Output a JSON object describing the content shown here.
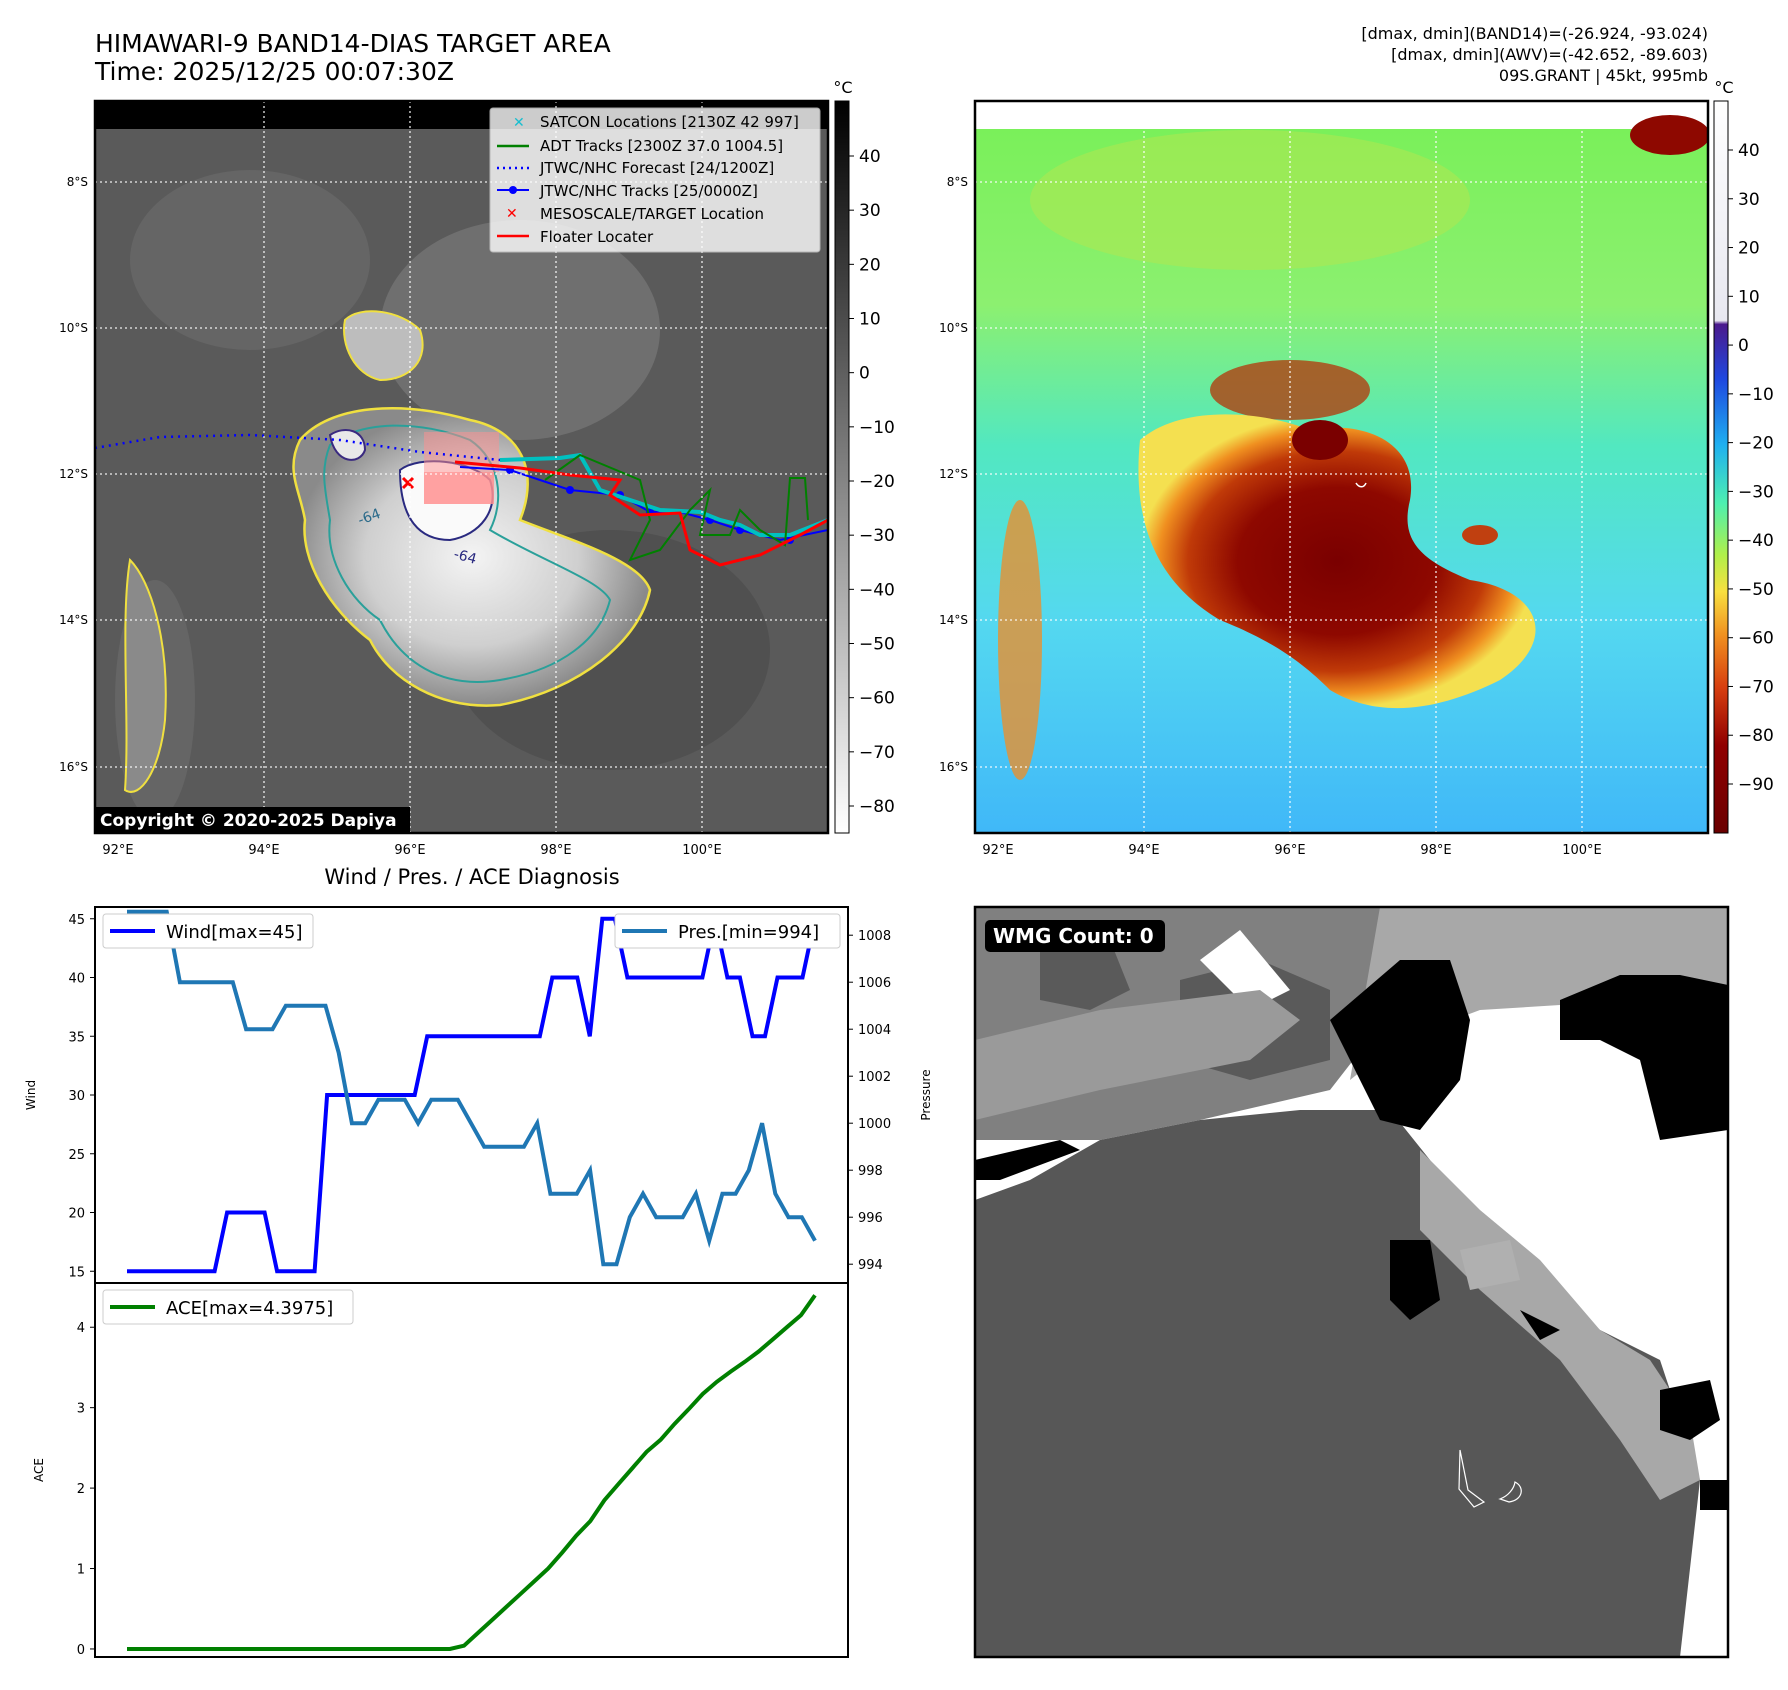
{
  "header": {
    "title_line1": "HIMAWARI-9 BAND14-DIAS TARGET AREA",
    "title_line2": "Time: 2025/12/25 00:07:30Z",
    "stats_line1": "[dmax, dmin](BAND14)=(-26.924, -93.024)",
    "stats_line2": "[dmax, dmin](AWV)=(-42.652, -89.603)",
    "stats_line3": "09S.GRANT | 45kt, 995mb"
  },
  "map": {
    "lat_labels": [
      "8°S",
      "10°S",
      "12°S",
      "14°S",
      "16°S"
    ],
    "lon_labels": [
      "92°E",
      "94°E",
      "96°E",
      "98°E",
      "100°E"
    ],
    "copyright": "Copyright © 2020-2025 Dapiya",
    "contour_labels": [
      "-64",
      "-64"
    ],
    "legend": [
      {
        "label": "SATCON Locations [2130Z 42 997]",
        "color": "#17becf",
        "marker": "x"
      },
      {
        "label": "ADT Tracks [2300Z 37.0 1004.5]",
        "color": "#008000",
        "marker": "line"
      },
      {
        "label": "JTWC/NHC Forecast [24/1200Z]",
        "color": "#0000ff",
        "marker": "dotted"
      },
      {
        "label": "JTWC/NHC Tracks [25/0000Z]",
        "color": "#0000ff",
        "marker": "line-dot"
      },
      {
        "label": "MESOSCALE/TARGET Location",
        "color": "#ff0000",
        "marker": "x"
      },
      {
        "label": "Floater Locater",
        "color": "#ff0000",
        "marker": "line"
      }
    ]
  },
  "colorbar_left": {
    "unit": "°C",
    "ticks": [
      "40",
      "30",
      "20",
      "10",
      "0",
      "−10",
      "−20",
      "−30",
      "−40",
      "−50",
      "−60",
      "−70",
      "−80"
    ]
  },
  "colorbar_right": {
    "unit": "°C",
    "ticks": [
      "40",
      "30",
      "20",
      "10",
      "0",
      "−10",
      "−20",
      "−30",
      "−40",
      "−50",
      "−60",
      "−70",
      "−80",
      "−90"
    ]
  },
  "wmg": {
    "label": "WMG Count: 0"
  },
  "chart_data": [
    {
      "type": "line",
      "title": "Wind / Pres. / ACE Diagnosis",
      "ylabel": "Wind",
      "ylabel_right": "Pressure",
      "ylim": [
        14,
        46
      ],
      "ylim_right": [
        993.2,
        1009.2
      ],
      "yticks": [
        15,
        20,
        25,
        30,
        35,
        40,
        45
      ],
      "yticks_right": [
        994,
        996,
        998,
        1000,
        1002,
        1004,
        1006,
        1008
      ],
      "series": [
        {
          "name": "Wind",
          "legend": "Wind[max=45]",
          "color": "#0000ff",
          "axis": "left",
          "values": [
            15,
            15,
            15,
            15,
            15,
            15,
            15,
            15,
            20,
            20,
            20,
            20,
            15,
            15,
            15,
            15,
            30,
            30,
            30,
            30,
            30,
            30,
            30,
            30,
            35,
            35,
            35,
            35,
            35,
            35,
            35,
            35,
            35,
            35,
            40,
            40,
            40,
            35,
            45,
            45,
            40,
            40,
            40,
            40,
            40,
            40,
            40,
            45,
            40,
            40,
            35,
            35,
            40,
            40,
            40,
            45
          ]
        },
        {
          "name": "Pressure",
          "legend": "Pres.[min=994]",
          "color": "#1f77b4",
          "axis": "right",
          "values": [
            1009,
            1009,
            1009,
            1009,
            1006,
            1006,
            1006,
            1006,
            1006,
            1004,
            1004,
            1004,
            1005,
            1005,
            1005,
            1005,
            1003,
            1000,
            1000,
            1001,
            1001,
            1001,
            1000,
            1001,
            1001,
            1001,
            1000,
            999,
            999,
            999,
            999,
            1000,
            997,
            997,
            997,
            998,
            994,
            994,
            996,
            997,
            996,
            996,
            996,
            997,
            995,
            997,
            997,
            998,
            1000,
            997,
            996,
            996,
            995
          ]
        }
      ]
    },
    {
      "type": "line",
      "ylabel": "ACE",
      "ylim": [
        -0.1,
        4.55
      ],
      "yticks": [
        0,
        1,
        2,
        3,
        4
      ],
      "series": [
        {
          "name": "ACE",
          "legend": "ACE[max=4.3975]",
          "color": "#008000",
          "values": [
            0,
            0,
            0,
            0,
            0,
            0,
            0,
            0,
            0,
            0,
            0,
            0,
            0,
            0,
            0,
            0,
            0,
            0,
            0,
            0,
            0,
            0,
            0,
            0,
            0.04,
            0.2,
            0.36,
            0.52,
            0.68,
            0.84,
            1.0,
            1.2,
            1.41,
            1.59,
            1.85,
            2.05,
            2.25,
            2.45,
            2.6,
            2.8,
            2.98,
            3.17,
            3.32,
            3.45,
            3.57,
            3.7,
            3.85,
            4.0,
            4.15,
            4.3975
          ]
        }
      ]
    }
  ]
}
